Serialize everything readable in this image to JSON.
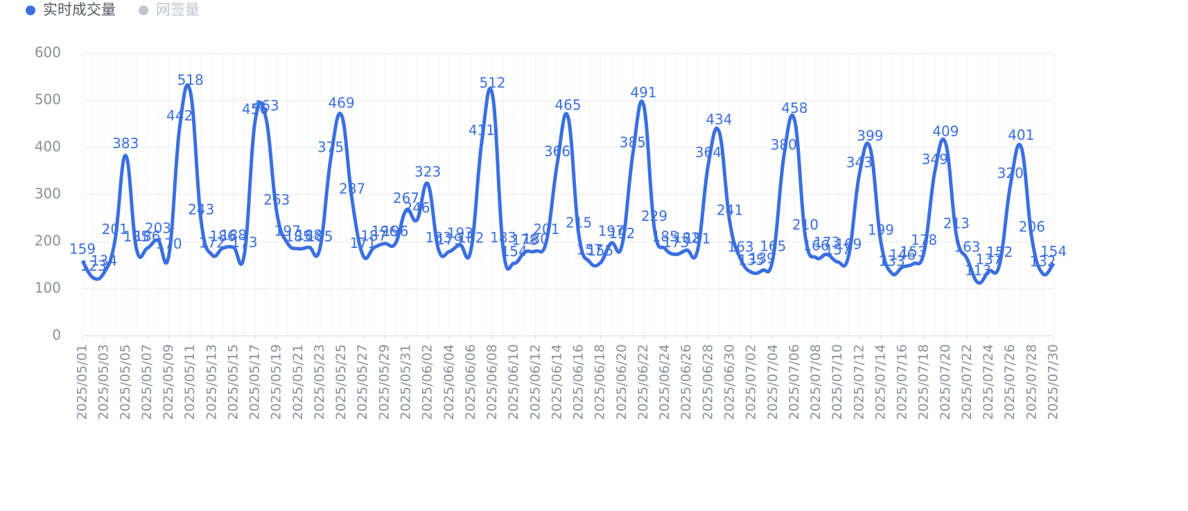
{
  "chart_data": {
    "type": "line",
    "categories": [
      "2025/05/01",
      null,
      "2025/05/03",
      null,
      "2025/05/05",
      null,
      "2025/05/07",
      null,
      "2025/05/09",
      null,
      "2025/05/11",
      null,
      "2025/05/13",
      null,
      "2025/05/15",
      null,
      "2025/05/17",
      null,
      "2025/05/19",
      null,
      "2025/05/21",
      null,
      "2025/05/23",
      null,
      "2025/05/25",
      null,
      "2025/05/27",
      null,
      "2025/05/29",
      null,
      "2025/05/31",
      null,
      "2025/06/02",
      null,
      "2025/06/04",
      null,
      "2025/06/06",
      null,
      "2025/06/08",
      null,
      "2025/06/10",
      null,
      "2025/06/12",
      null,
      "2025/06/14",
      null,
      "2025/06/16",
      null,
      "2025/06/18",
      null,
      "2025/06/20",
      null,
      "2025/06/22",
      null,
      "2025/06/24",
      null,
      "2025/06/26",
      null,
      "2025/06/28",
      null,
      "2025/06/30",
      null,
      "2025/07/02",
      null,
      "2025/07/04",
      null,
      "2025/07/06",
      null,
      "2025/07/08",
      null,
      "2025/07/10",
      null,
      "2025/07/12",
      null,
      "2025/07/14",
      null,
      "2025/07/16",
      null,
      "2025/07/18",
      null,
      "2025/07/20",
      null,
      "2025/07/22",
      null,
      "2025/07/24",
      null,
      "2025/07/26",
      null,
      "2025/07/28",
      null,
      "2025/07/30"
    ],
    "series": [
      {
        "name": "实时成交量",
        "color": "#3a6fe0",
        "values": [
          159,
          123,
          134,
          201,
          383,
          185,
          186,
          203,
          170,
          442,
          518,
          243,
          172,
          186,
          188,
          173,
          456,
          463,
          263,
          197,
          185,
          188,
          185,
          375,
          469,
          287,
          171,
          187,
          196,
          196,
          267,
          246,
          323,
          183,
          179,
          193,
          182,
          411,
          512,
          183,
          154,
          178,
          180,
          201,
          366,
          465,
          215,
          157,
          155,
          197,
          192,
          385,
          491,
          229,
          185,
          173,
          182,
          181,
          364,
          434,
          241,
          163,
          135,
          139,
          165,
          380,
          458,
          210,
          166,
          173,
          157,
          169,
          343,
          399,
          199,
          133,
          146,
          153,
          178,
          349,
          409,
          213,
          163,
          113,
          137,
          152,
          320,
          401,
          206,
          132,
          154
        ]
      },
      {
        "name": "网签量",
        "color": "#c0c4cc",
        "hidden": true
      }
    ],
    "ylim": [
      0,
      600
    ],
    "yticks": [
      0,
      100,
      200,
      300,
      400,
      500,
      600
    ],
    "grid": true,
    "smooth": true
  }
}
